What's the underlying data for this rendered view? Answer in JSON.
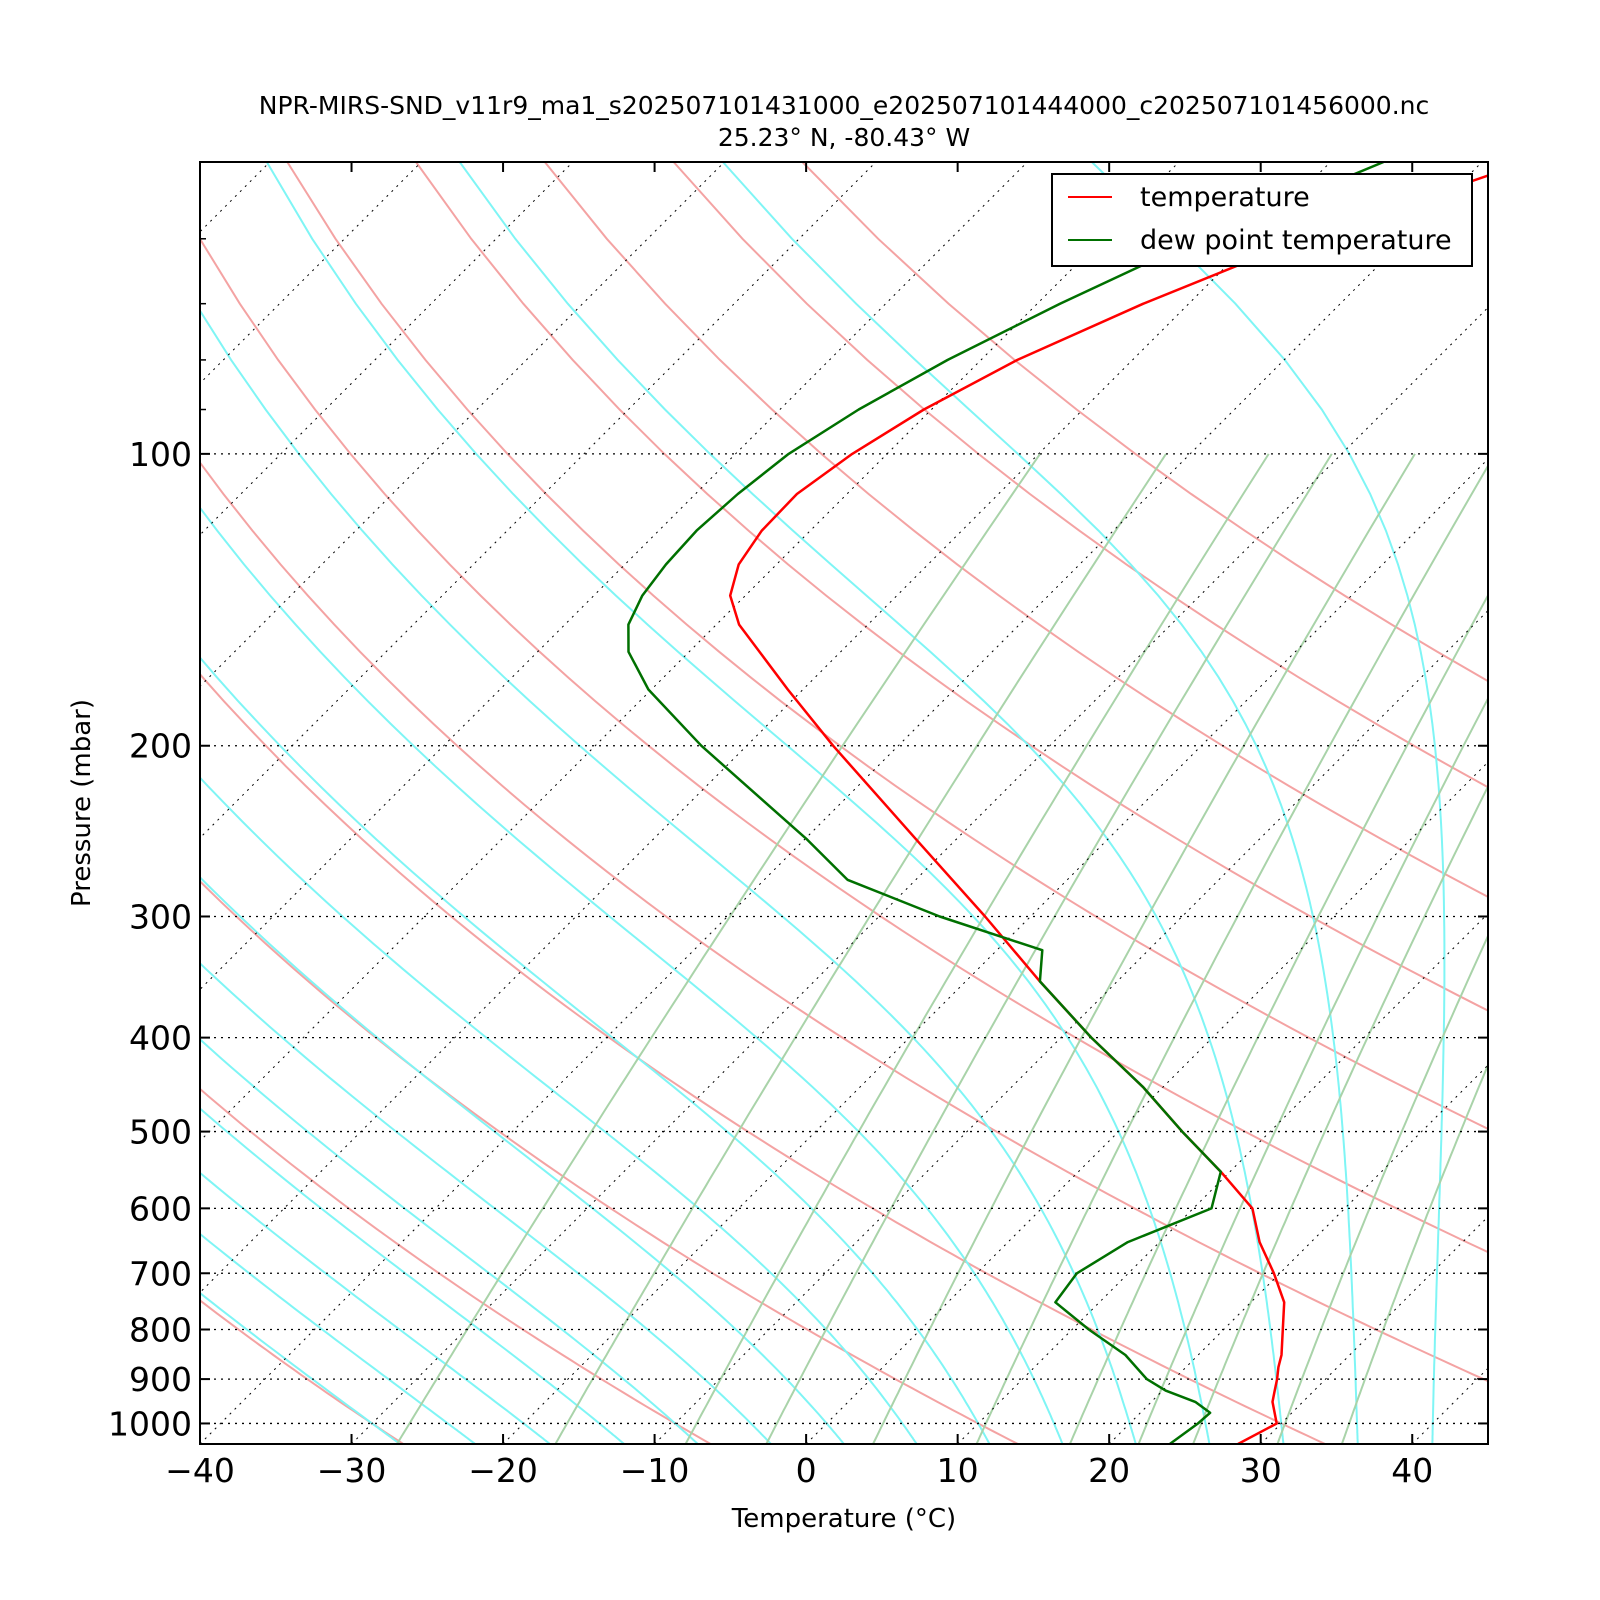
{
  "chart_data": {
    "type": "line",
    "subtype": "skew-t log-p diagram",
    "title": "NPR-MIRS-SND_v11r9_ma1_s202507101431000_e202507101444000_c202507101456000.nc",
    "subtitle": "25.23° N, -80.43° W",
    "xlabel": "Temperature (°C)",
    "ylabel": "Pressure (mbar)",
    "x_range": [
      -40,
      45
    ],
    "y_range_mbar": [
      1050,
      50
    ],
    "y_scale": "log",
    "x_ticks": [
      -40,
      -30,
      -20,
      -10,
      0,
      10,
      20,
      30,
      40
    ],
    "x_tick_labels": [
      "−40",
      "−30",
      "−20",
      "−10",
      "0",
      "10",
      "20",
      "30",
      "40"
    ],
    "y_ticks": [
      100,
      200,
      300,
      400,
      500,
      600,
      700,
      800,
      900,
      1000
    ],
    "y_tick_labels": [
      "100",
      "200",
      "300",
      "400",
      "500",
      "600",
      "700",
      "800",
      "900",
      "1000"
    ],
    "legend": {
      "placement": "top-right",
      "entries": [
        "temperature",
        "dew point temperature"
      ]
    },
    "colors": {
      "temperature": "#ff0000",
      "dewpoint": "#007000",
      "dry_adiabats": "#f4a3a3",
      "moist_adiabats": "#7ff5f5",
      "mixing_ratio": "#a9d3a9",
      "isotherms": "#000000"
    },
    "series": [
      {
        "name": "temperature",
        "pressure": [
          1050,
          1000,
          950,
          925,
          900,
          875,
          850,
          800,
          750,
          700,
          650,
          600,
          550,
          500,
          450,
          400,
          350,
          300,
          250,
          200,
          175,
          150,
          140,
          130,
          120,
          110,
          100,
          90,
          80,
          70,
          60,
          50
        ],
        "temp_c": [
          28.5,
          29.7,
          28.0,
          27.4,
          26.8,
          26.1,
          25.5,
          23.9,
          22.2,
          19.6,
          16.6,
          13.9,
          9.4,
          4.2,
          -1.3,
          -8.0,
          -15.1,
          -23.0,
          -32.6,
          -44.3,
          -51.0,
          -58.5,
          -61.0,
          -62.5,
          -63.2,
          -63.3,
          -62.3,
          -60.5,
          -57.6,
          -53.0,
          -46.7,
          -37.0
        ]
      },
      {
        "name": "dew point temperature",
        "pressure": [
          1050,
          1000,
          975,
          950,
          925,
          900,
          850,
          800,
          750,
          700,
          650,
          600,
          550,
          500,
          450,
          400,
          350,
          325,
          300,
          275,
          250,
          200,
          175,
          160,
          150,
          140,
          130,
          120,
          110,
          100,
          90,
          80,
          70,
          60,
          50
        ],
        "dewpoint_c": [
          24.0,
          24.5,
          24.6,
          22.9,
          20.2,
          18.2,
          15.2,
          11.1,
          7.1,
          6.6,
          7.9,
          11.2,
          9.4,
          4.2,
          -1.3,
          -8.0,
          -15.1,
          -17.0,
          -26.0,
          -34.5,
          -39.8,
          -53.0,
          -60.2,
          -64.0,
          -65.8,
          -66.8,
          -67.3,
          -67.5,
          -67.2,
          -66.5,
          -64.8,
          -62.2,
          -58.5,
          -53.6,
          -46.5
        ]
      }
    ],
    "gridlines": true
  }
}
